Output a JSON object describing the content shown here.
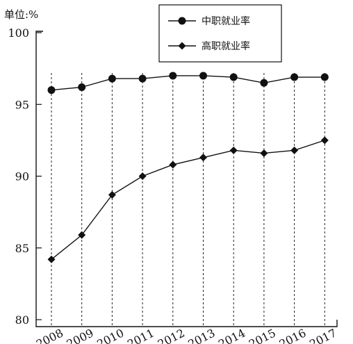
{
  "chart_data": {
    "type": "line",
    "unit_label": "单位:%",
    "categories": [
      "2008",
      "2009",
      "2010",
      "2011",
      "2012",
      "2013",
      "2014",
      "2015",
      "2016",
      "2017"
    ],
    "ylim": [
      80,
      100
    ],
    "yticks": [
      80,
      85,
      90,
      95,
      100
    ],
    "grid": "dashed vertical lines at each year",
    "legend_position": "top-right",
    "series": [
      {
        "name": "中职就业率",
        "marker": "circle",
        "values": [
          96.0,
          96.2,
          96.8,
          96.8,
          97.0,
          97.0,
          96.9,
          96.5,
          96.9,
          96.9
        ]
      },
      {
        "name": "高职就业率",
        "marker": "diamond",
        "values": [
          84.2,
          85.9,
          88.7,
          90.0,
          90.8,
          91.3,
          91.8,
          91.6,
          91.8,
          92.5
        ]
      }
    ]
  }
}
